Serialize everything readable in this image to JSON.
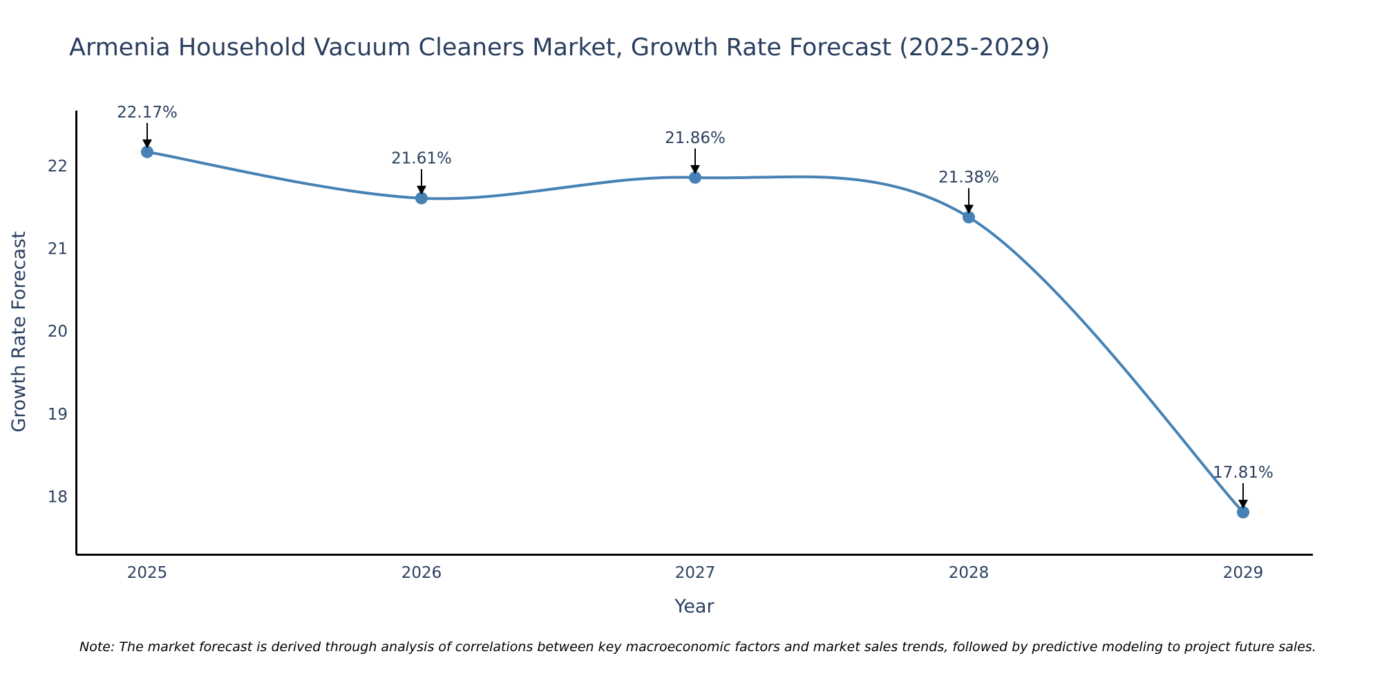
{
  "chart_data": {
    "type": "line",
    "title": "Armenia Household Vacuum Cleaners Market, Growth Rate Forecast (2025-2029)",
    "xlabel": "Year",
    "ylabel": "Growth Rate Forecast",
    "categories": [
      "2025",
      "2026",
      "2027",
      "2028",
      "2029"
    ],
    "series": [
      {
        "name": "Growth Rate Forecast",
        "values": [
          22.17,
          21.61,
          21.86,
          21.38,
          17.81
        ],
        "labels": [
          "22.17%",
          "21.61%",
          "21.86%",
          "21.38%",
          "17.81%"
        ]
      }
    ],
    "yticks": [
      18,
      19,
      20,
      21,
      22
    ],
    "ylim": [
      17.3,
      22.67
    ],
    "grid": false,
    "line_shape": "spline",
    "note": "Note: The market forecast is derived through analysis of correlations between key macroeconomic factors and market sales trends, followed by predictive modeling to project future sales.",
    "colors": {
      "line": "#4682b4",
      "marker": "#4682b4",
      "text": "#2a3f5f",
      "axis": "#000000",
      "arrow": "#000000"
    }
  }
}
